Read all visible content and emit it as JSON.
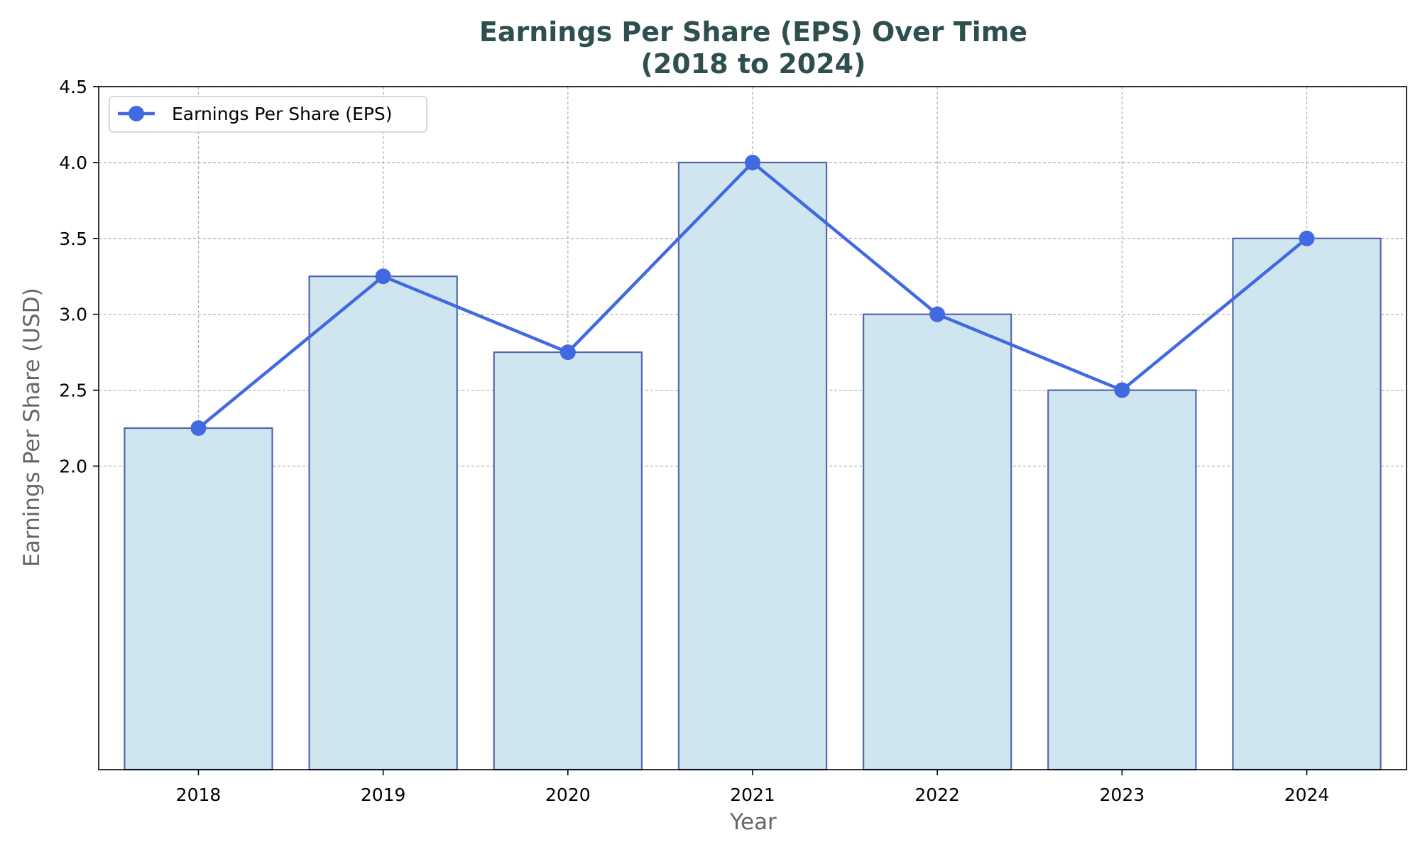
{
  "chart_data": {
    "type": "bar",
    "title": "Earnings Per Share (EPS) Over Time",
    "subtitle": "(2018 to 2024)",
    "xlabel": "Year",
    "ylabel": "Earnings Per Share (USD)",
    "categories": [
      "2018",
      "2019",
      "2020",
      "2021",
      "2022",
      "2023",
      "2024"
    ],
    "values": [
      2.25,
      3.25,
      2.75,
      4.0,
      3.0,
      2.5,
      3.5
    ],
    "series": [
      {
        "name": "Earnings Per Share (EPS)",
        "type": "line",
        "values": [
          2.25,
          3.25,
          2.75,
          4.0,
          3.0,
          2.5,
          3.5
        ]
      }
    ],
    "ylim": [
      0,
      4.5
    ],
    "yticks": [
      2.0,
      2.5,
      3.0,
      3.5,
      4.0,
      4.5
    ],
    "ytick_labels": [
      "2.0",
      "2.5",
      "3.0",
      "3.5",
      "4.0",
      "4.5"
    ],
    "grid": true,
    "legend": "top-left",
    "colors": {
      "bar_fill": "#cfe6f0",
      "bar_edge": "#5566aa",
      "line": "#4169e1",
      "title": "#2f4f4f",
      "axis_label": "#666666",
      "grid": "#aaaaaa"
    }
  }
}
